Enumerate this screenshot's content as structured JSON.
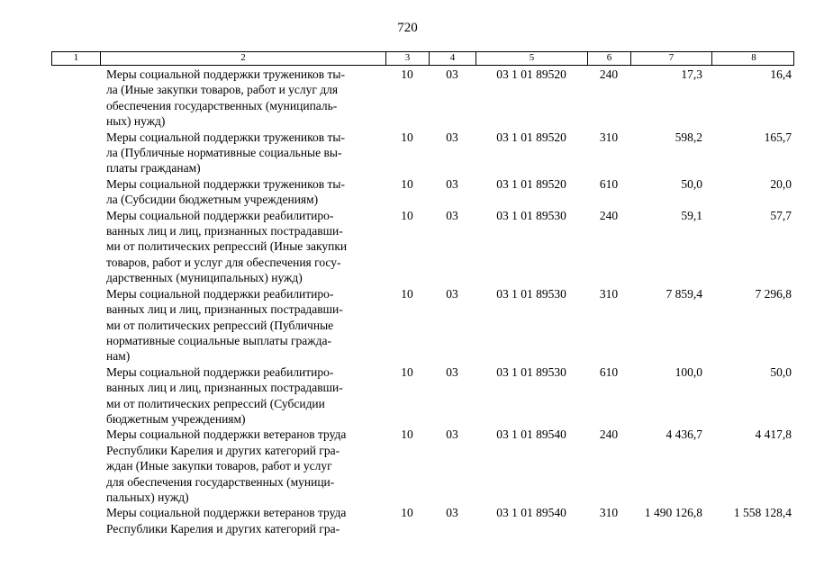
{
  "page_number": "720",
  "table": {
    "header": [
      "1",
      "2",
      "3",
      "4",
      "5",
      "6",
      "7",
      "8"
    ],
    "rows": [
      {
        "name": "Меры социальной поддержки тружеников ты-\nла (Иные закупки товаров, работ и услуг для\nобеспечения государственных (муниципаль-\nных) нужд)",
        "rz": "10",
        "pr": "03",
        "csr": "03 1 01 89520",
        "vr": "240",
        "amount_1": "17,3",
        "amount_2": "16,4"
      },
      {
        "name": "Меры социальной поддержки тружеников ты-\nла (Публичные нормативные социальные вы-\nплаты гражданам)",
        "rz": "10",
        "pr": "03",
        "csr": "03 1 01 89520",
        "vr": "310",
        "amount_1": "598,2",
        "amount_2": "165,7"
      },
      {
        "name": "Меры социальной поддержки тружеников ты-\nла (Субсидии бюджетным учреждениям)",
        "rz": "10",
        "pr": "03",
        "csr": "03 1 01 89520",
        "vr": "610",
        "amount_1": "50,0",
        "amount_2": "20,0"
      },
      {
        "name": "Меры социальной поддержки реабилитиро-\nванных лиц и лиц, признанных пострадавши-\nми от политических репрессий (Иные закупки\nтоваров, работ и услуг для обеспечения госу-\nдарственных (муниципальных) нужд)",
        "rz": "10",
        "pr": "03",
        "csr": "03 1 01 89530",
        "vr": "240",
        "amount_1": "59,1",
        "amount_2": "57,7"
      },
      {
        "name": "Меры социальной поддержки реабилитиро-\nванных лиц и лиц, признанных пострадавши-\nми от политических репрессий (Публичные\nнормативные социальные выплаты гражда-\nнам)",
        "rz": "10",
        "pr": "03",
        "csr": "03 1 01 89530",
        "vr": "310",
        "amount_1": "7 859,4",
        "amount_2": "7 296,8"
      },
      {
        "name": "Меры социальной поддержки реабилитиро-\nванных лиц и лиц, признанных пострадавши-\nми от политических репрессий (Субсидии\nбюджетным учреждениям)",
        "rz": "10",
        "pr": "03",
        "csr": "03 1 01 89530",
        "vr": "610",
        "amount_1": "100,0",
        "amount_2": "50,0"
      },
      {
        "name": "Меры социальной поддержки ветеранов труда\nРеспублики Карелия и других категорий гра-\nждан (Иные закупки товаров, работ и услуг\nдля обеспечения государственных (муници-\nпальных) нужд)",
        "rz": "10",
        "pr": "03",
        "csr": "03 1 01 89540",
        "vr": "240",
        "amount_1": "4 436,7",
        "amount_2": "4 417,8"
      },
      {
        "name": "Меры социальной поддержки ветеранов труда\nРеспублики Карелия и других категорий гра-",
        "rz": "10",
        "pr": "03",
        "csr": "03 1 01 89540",
        "vr": "310",
        "amount_1": "1 490 126,8",
        "amount_2": "1 558 128,4"
      }
    ]
  }
}
